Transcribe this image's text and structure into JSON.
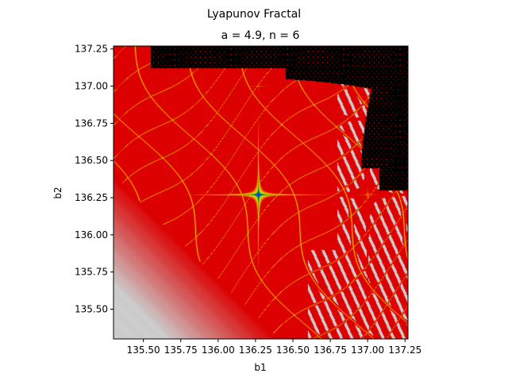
{
  "chart_data": {
    "type": "heatmap",
    "suptitle": "Lyapunov Fractal",
    "title": "a = 4.9, n = 6",
    "xlabel": "b1",
    "ylabel": "b2",
    "xlim": [
      135.3,
      137.27
    ],
    "ylim": [
      135.3,
      137.27
    ],
    "xticks": [
      135.5,
      135.75,
      136.0,
      136.25,
      136.5,
      136.75,
      137.0,
      137.25
    ],
    "xtick_labels": [
      "135.50",
      "135.75",
      "136.00",
      "136.25",
      "136.50",
      "136.75",
      "137.00",
      "137.25"
    ],
    "yticks": [
      135.5,
      135.75,
      136.0,
      136.25,
      136.5,
      136.75,
      137.0,
      137.25
    ],
    "ytick_labels": [
      "135.50",
      "135.75",
      "136.00",
      "136.25",
      "136.50",
      "136.75",
      "137.00",
      "137.25"
    ],
    "centers": [
      {
        "b1": 136.27,
        "b2": 136.27,
        "strength": 1.0
      },
      {
        "b1": 137.0,
        "b2": 136.27,
        "strength": 0.35
      },
      {
        "b1": 136.27,
        "b2": 137.0,
        "strength": 0.3
      },
      {
        "b1": 136.78,
        "b2": 136.78,
        "strength": 0.25
      }
    ],
    "colors": {
      "blue": "#1f3ad8",
      "green": "#17c217",
      "yellow": "#f2e600",
      "orange": "#f08c00",
      "red": "#dd0000",
      "grey": "#cdcdcd",
      "black": "#000000"
    }
  }
}
